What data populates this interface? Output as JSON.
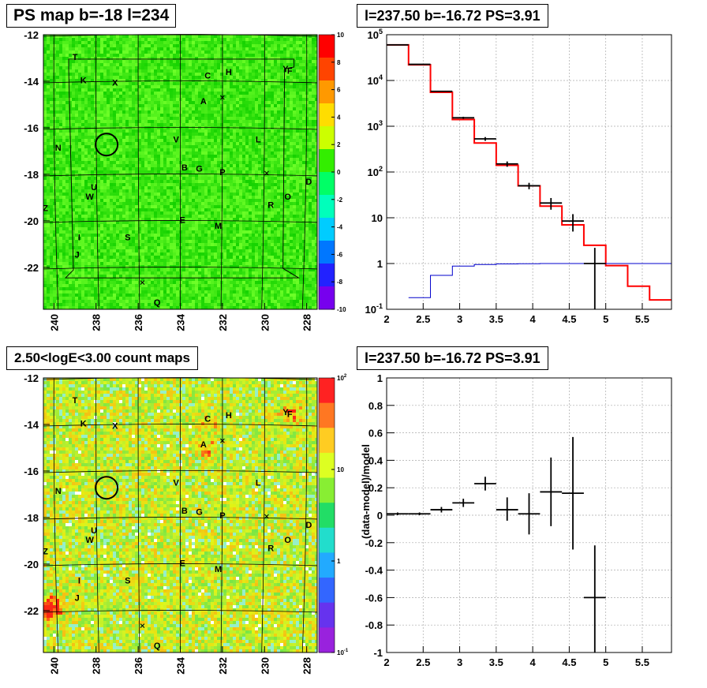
{
  "titles": {
    "tl": "PS map b=-18 l=234",
    "tr": "l=237.50 b=-16.72 PS=3.91",
    "bl": "2.50<logE<3.00 count maps",
    "br": "l=237.50 b=-16.72 PS=3.91"
  },
  "colors": {
    "map_green": "#22ee22",
    "data_black": "#000000",
    "model_red": "#ff0000",
    "model_blue": "#0000cc",
    "grid": "#888888"
  },
  "chart_data": [
    {
      "id": "ps_map",
      "type": "heatmap",
      "title": "PS map b=-18 l=234",
      "x_ticks": [
        "240",
        "238",
        "236",
        "234",
        "232",
        "230",
        "228"
      ],
      "y_ticks": [
        "-12",
        "-14",
        "-16",
        "-18",
        "-20",
        "-22"
      ],
      "xlim": [
        240.5,
        227.5
      ],
      "ylim": [
        -23.8,
        -12
      ],
      "z_ticks": [
        "10",
        "8",
        "6",
        "4",
        "2",
        "0",
        "-2",
        "-4",
        "-6",
        "-8",
        "-10"
      ],
      "zlim": [
        -10,
        10
      ],
      "marker": {
        "l": 237.5,
        "b": -16.72
      },
      "labels": [
        {
          "t": "T",
          "l": 239.0,
          "b": -12.95
        },
        {
          "t": "K",
          "l": 238.6,
          "b": -13.95
        },
        {
          "t": "X",
          "l": 237.1,
          "b": -14.05
        },
        {
          "t": "C",
          "l": 232.7,
          "b": -13.75
        },
        {
          "t": "H",
          "l": 231.7,
          "b": -13.6
        },
        {
          "t": "Y",
          "l": 229.0,
          "b": -13.45
        },
        {
          "t": "F",
          "l": 228.8,
          "b": -13.55
        },
        {
          "t": "A",
          "l": 232.9,
          "b": -14.85
        },
        {
          "t": "N",
          "l": 239.8,
          "b": -16.85
        },
        {
          "t": "V",
          "l": 234.2,
          "b": -16.5
        },
        {
          "t": "L",
          "l": 230.3,
          "b": -16.5
        },
        {
          "t": "B",
          "l": 233.8,
          "b": -17.7
        },
        {
          "t": "G",
          "l": 233.1,
          "b": -17.75
        },
        {
          "t": "P",
          "l": 232.0,
          "b": -17.9
        },
        {
          "t": "U",
          "l": 238.1,
          "b": -18.55
        },
        {
          "t": "W",
          "l": 238.3,
          "b": -18.95
        },
        {
          "t": "D",
          "l": 227.9,
          "b": -18.3
        },
        {
          "t": "O",
          "l": 228.9,
          "b": -18.95
        },
        {
          "t": "R",
          "l": 229.7,
          "b": -19.3
        },
        {
          "t": "Z",
          "l": 240.4,
          "b": -19.45
        },
        {
          "t": "E",
          "l": 233.9,
          "b": -19.95
        },
        {
          "t": "M",
          "l": 232.2,
          "b": -20.2
        },
        {
          "t": "I",
          "l": 238.8,
          "b": -20.7
        },
        {
          "t": "S",
          "l": 236.5,
          "b": -20.7
        },
        {
          "t": "J",
          "l": 238.9,
          "b": -21.45
        },
        {
          "t": "Q",
          "l": 235.1,
          "b": -23.5
        }
      ],
      "crosses": [
        {
          "l": 232.0,
          "b": -14.7
        },
        {
          "l": 229.9,
          "b": -17.95
        },
        {
          "l": 235.8,
          "b": -22.65
        }
      ]
    },
    {
      "id": "spectrum",
      "type": "line",
      "title": "l=237.50 b=-16.72 PS=3.91",
      "x_ticks": [
        "2",
        "2.5",
        "3",
        "3.5",
        "4",
        "4.5",
        "5",
        "5.5"
      ],
      "xlim": [
        2,
        5.9
      ],
      "ylim": [
        0.1,
        100000
      ],
      "y_log": true,
      "y_ticks": [
        "10^-1",
        "1",
        "10",
        "10^2",
        "10^3",
        "10^4",
        "10^5"
      ],
      "series": [
        {
          "edges": [
            2,
            2.3,
            2.6,
            2.9,
            3.2,
            3.5,
            3.8,
            4.1,
            4.4,
            4.7,
            5.0,
            5.3,
            5.6,
            5.9
          ],
          "values": [
            60000,
            22000,
            5500,
            1400,
            430,
            140,
            50,
            18,
            7,
            2.5,
            0.9,
            0.32,
            0.16
          ]
        },
        {
          "edges": [
            2.3,
            2.6,
            2.9,
            3.2,
            3.5,
            3.8,
            4.1,
            4.4,
            4.7,
            5.0,
            5.3,
            5.6,
            5.9
          ],
          "values": [
            0.18,
            0.55,
            0.88,
            0.95,
            0.98,
            0.99,
            1.0,
            1.0,
            1.0,
            1.0,
            1.0,
            1.0
          ]
        }
      ],
      "points": [
        {
          "x": 2.15,
          "y": 60000,
          "lo": 59500,
          "hi": 60500,
          "xlo": 2.0,
          "xhi": 2.3
        },
        {
          "x": 2.45,
          "y": 22500,
          "lo": 22200,
          "hi": 22800,
          "xlo": 2.3,
          "xhi": 2.6
        },
        {
          "x": 2.75,
          "y": 5800,
          "lo": 5650,
          "hi": 5950,
          "xlo": 2.6,
          "xhi": 2.9
        },
        {
          "x": 3.05,
          "y": 1530,
          "lo": 1450,
          "hi": 1610,
          "xlo": 2.9,
          "xhi": 3.2
        },
        {
          "x": 3.35,
          "y": 530,
          "lo": 480,
          "hi": 580,
          "xlo": 3.2,
          "xhi": 3.5
        },
        {
          "x": 3.65,
          "y": 150,
          "lo": 130,
          "hi": 170,
          "xlo": 3.5,
          "xhi": 3.8
        },
        {
          "x": 3.95,
          "y": 50,
          "lo": 42,
          "hi": 58,
          "xlo": 3.8,
          "xhi": 4.1
        },
        {
          "x": 4.25,
          "y": 21,
          "lo": 15,
          "hi": 27,
          "xlo": 4.1,
          "xhi": 4.4
        },
        {
          "x": 4.55,
          "y": 8.5,
          "lo": 5,
          "hi": 12,
          "xlo": 4.4,
          "xhi": 4.7
        },
        {
          "x": 4.85,
          "y": 1.0,
          "lo": 0.1,
          "hi": 2.2,
          "xlo": 4.7,
          "xhi": 5.0
        }
      ]
    },
    {
      "id": "count_map",
      "type": "heatmap",
      "title": "2.50<logE<3.00 count maps",
      "x_ticks": [
        "240",
        "238",
        "236",
        "234",
        "232",
        "230",
        "228"
      ],
      "y_ticks": [
        "-12",
        "-14",
        "-16",
        "-18",
        "-20",
        "-22"
      ],
      "xlim": [
        240.5,
        227.5
      ],
      "ylim": [
        -23.8,
        -12
      ],
      "z_log": true,
      "z_ticks": [
        "10^2",
        "10",
        "1",
        "10^-1"
      ],
      "zlim": [
        0.1,
        100
      ],
      "hotspots": [
        {
          "l": 240.3,
          "b": -21.9,
          "v": 60
        },
        {
          "l": 232.9,
          "b": -14.9,
          "v": 20
        },
        {
          "l": 232.7,
          "b": -13.8,
          "v": 12
        },
        {
          "l": 228.8,
          "b": -13.5,
          "v": 22
        }
      ]
    },
    {
      "id": "residuals",
      "type": "scatter",
      "title": "l=237.50 b=-16.72 PS=3.91",
      "ylabel": "(data-model)/model",
      "x_ticks": [
        "2",
        "2.5",
        "3",
        "3.5",
        "4",
        "4.5",
        "5",
        "5.5"
      ],
      "xlim": [
        2,
        5.9
      ],
      "ylim": [
        -1,
        1
      ],
      "y_ticks": [
        "1",
        "0.8",
        "0.6",
        "0.4",
        "0.2",
        "0",
        "-0.2",
        "-0.4",
        "-0.6",
        "-0.8",
        "-1"
      ],
      "points": [
        {
          "x": 2.15,
          "y": 0.01,
          "lo": 0.0,
          "hi": 0.02,
          "xlo": 2.0,
          "xhi": 2.3
        },
        {
          "x": 2.45,
          "y": 0.01,
          "lo": 0.0,
          "hi": 0.02,
          "xlo": 2.3,
          "xhi": 2.6
        },
        {
          "x": 2.75,
          "y": 0.04,
          "lo": 0.02,
          "hi": 0.06,
          "xlo": 2.6,
          "xhi": 2.9
        },
        {
          "x": 3.05,
          "y": 0.09,
          "lo": 0.06,
          "hi": 0.12,
          "xlo": 2.9,
          "xhi": 3.2
        },
        {
          "x": 3.35,
          "y": 0.23,
          "lo": 0.18,
          "hi": 0.28,
          "xlo": 3.2,
          "xhi": 3.5
        },
        {
          "x": 3.65,
          "y": 0.04,
          "lo": -0.04,
          "hi": 0.13,
          "xlo": 3.5,
          "xhi": 3.8
        },
        {
          "x": 3.95,
          "y": 0.01,
          "lo": -0.14,
          "hi": 0.16,
          "xlo": 3.8,
          "xhi": 4.1
        },
        {
          "x": 4.25,
          "y": 0.17,
          "lo": -0.08,
          "hi": 0.42,
          "xlo": 4.1,
          "xhi": 4.4
        },
        {
          "x": 4.55,
          "y": 0.16,
          "lo": -0.25,
          "hi": 0.57,
          "xlo": 4.4,
          "xhi": 4.7
        },
        {
          "x": 4.85,
          "y": -0.6,
          "lo": -1.0,
          "hi": -0.22,
          "xlo": 4.7,
          "xhi": 5.0
        }
      ]
    }
  ]
}
